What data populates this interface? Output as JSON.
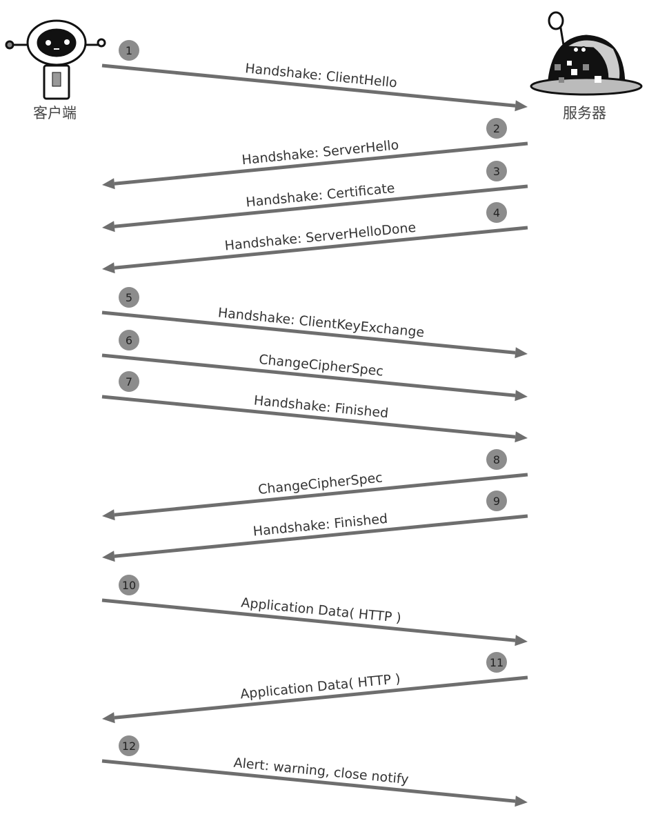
{
  "actors": {
    "client": {
      "label": "客户端",
      "icon": "client-robot-icon"
    },
    "server": {
      "label": "服务器",
      "icon": "server-robot-icon"
    }
  },
  "colors": {
    "arrow": "#6e6e6e",
    "badge": "#8c8c8c",
    "text": "#333333"
  },
  "messages": [
    {
      "number": "1",
      "label": "Handshake: ClientHello",
      "direction": "client-to-server"
    },
    {
      "number": "2",
      "label": "Handshake: ServerHello",
      "direction": "server-to-client"
    },
    {
      "number": "3",
      "label": "Handshake: Certificate",
      "direction": "server-to-client"
    },
    {
      "number": "4",
      "label": "Handshake: ServerHelloDone",
      "direction": "server-to-client"
    },
    {
      "number": "5",
      "label": "Handshake: ClientKeyExchange",
      "direction": "client-to-server"
    },
    {
      "number": "6",
      "label": "ChangeCipherSpec",
      "direction": "client-to-server"
    },
    {
      "number": "7",
      "label": "Handshake: Finished",
      "direction": "client-to-server"
    },
    {
      "number": "8",
      "label": "ChangeCipherSpec",
      "direction": "server-to-client"
    },
    {
      "number": "9",
      "label": "Handshake: Finished",
      "direction": "server-to-client"
    },
    {
      "number": "10",
      "label": "Application Data( HTTP )",
      "direction": "client-to-server"
    },
    {
      "number": "11",
      "label": "Application Data( HTTP )",
      "direction": "server-to-client"
    },
    {
      "number": "12",
      "label": "Alert: warning, close notify",
      "direction": "client-to-server"
    }
  ]
}
